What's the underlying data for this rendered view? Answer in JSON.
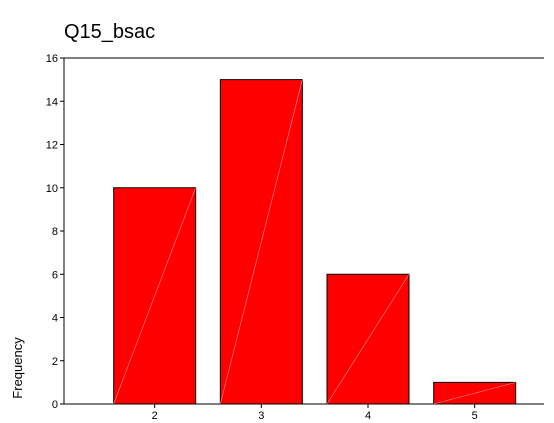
{
  "chart_data": {
    "type": "bar",
    "title": "Q15_bsac",
    "xlabel": "",
    "ylabel": "Frequency",
    "categories": [
      "2",
      "3",
      "4",
      "5"
    ],
    "values": [
      10,
      15,
      6,
      1
    ],
    "yticks": [
      "0",
      "2",
      "4",
      "6",
      "8",
      "10",
      "12",
      "14",
      "16"
    ],
    "ylim": [
      0,
      16
    ],
    "grid": false,
    "bar_color": "#ff0000"
  }
}
